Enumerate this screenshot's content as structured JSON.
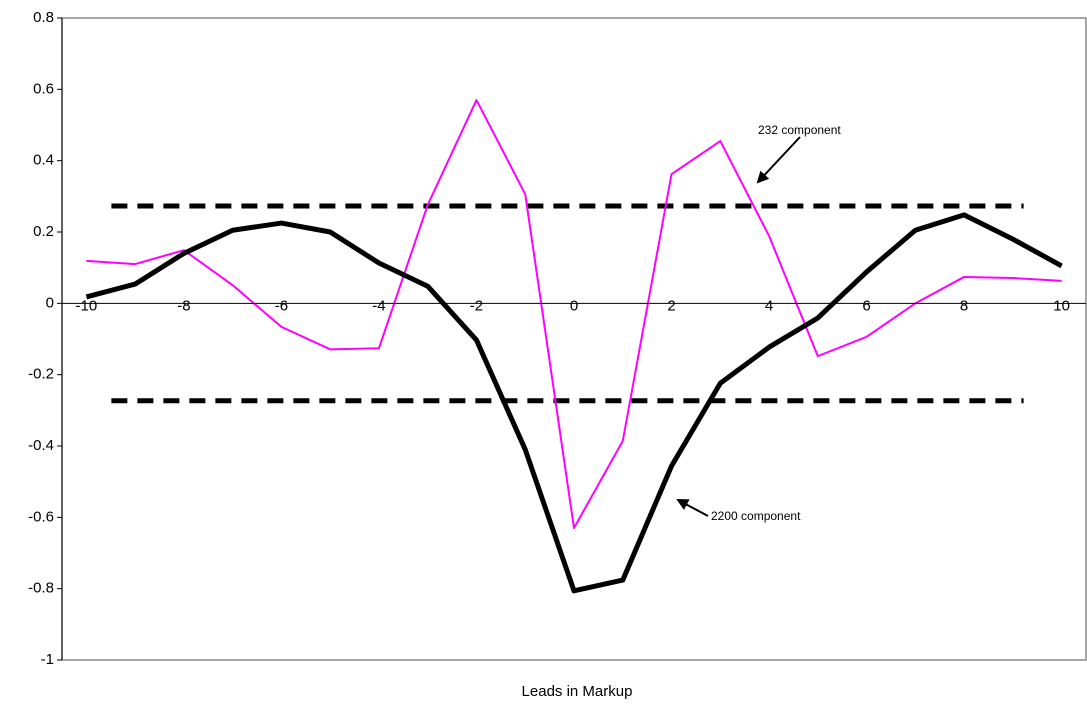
{
  "chart_data": {
    "type": "line",
    "x_label": "Leads in Markup",
    "categories": [
      "-10",
      null,
      "-8",
      null,
      "-6",
      null,
      "-4",
      null,
      "-2",
      null,
      "0",
      null,
      "2",
      null,
      "4",
      null,
      "6",
      null,
      "8",
      null,
      "10"
    ],
    "series": [
      {
        "name": "2200 component",
        "color": "#000000",
        "values": [
          0.018,
          0.054,
          0.14,
          0.205,
          0.225,
          0.2,
          0.113,
          0.048,
          -0.103,
          -0.41,
          -0.806,
          -0.776,
          -0.456,
          -0.224,
          -0.123,
          -0.041,
          0.088,
          0.205,
          0.248,
          0.18,
          0.105
        ]
      },
      {
        "name": "232 component",
        "color": "#ff00ff",
        "values": [
          0.119,
          0.11,
          0.149,
          0.051,
          -0.066,
          -0.129,
          -0.126,
          0.276,
          0.57,
          0.306,
          -0.63,
          -0.386,
          0.362,
          0.455,
          0.189,
          -0.148,
          -0.094,
          0,
          0.074,
          0.071,
          0.063
        ]
      }
    ],
    "hlines": [
      0.273,
      -0.273
    ],
    "ylim": [
      -1,
      0.8
    ],
    "yticks": [
      -1,
      -0.8,
      -0.6,
      -0.4,
      -0.2,
      0,
      0.2,
      0.4,
      0.6,
      0.8
    ]
  }
}
